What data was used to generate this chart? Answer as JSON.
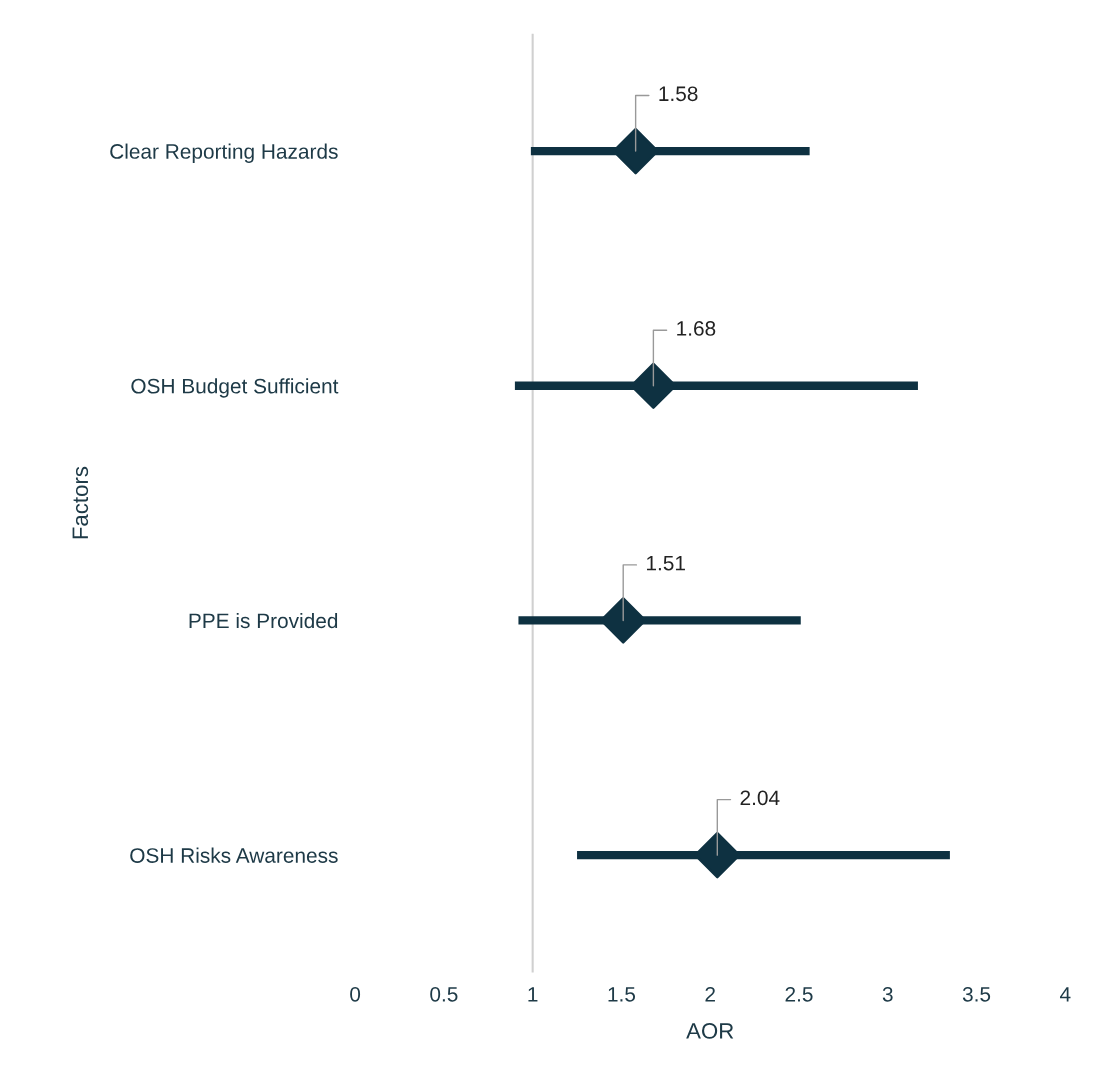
{
  "chart_data": {
    "type": "scatter",
    "orientation": "horizontal",
    "categories": [
      "Clear Reporting Hazards",
      "OSH Budget Sufficient",
      "PPE is Provided",
      "OSH Risks Awareness"
    ],
    "values": [
      1.58,
      1.68,
      1.51,
      2.04
    ],
    "errors": [
      [
        0.99,
        2.56
      ],
      [
        0.9,
        3.17
      ],
      [
        0.92,
        2.51
      ],
      [
        1.25,
        3.35
      ]
    ],
    "color": "#0e3141",
    "marker": "diamond",
    "data_labels": true,
    "xlim": [
      0,
      4
    ],
    "xticks": [
      0,
      0.5,
      1,
      1.5,
      2,
      2.5,
      3,
      3.5,
      4
    ],
    "xlabel": "AOR",
    "ylabel": "Factors",
    "grid": false,
    "legend": false,
    "ref_lines": [
      {
        "axis": "x",
        "value": 1,
        "label": null,
        "color": "#d0d0d0"
      }
    ]
  }
}
